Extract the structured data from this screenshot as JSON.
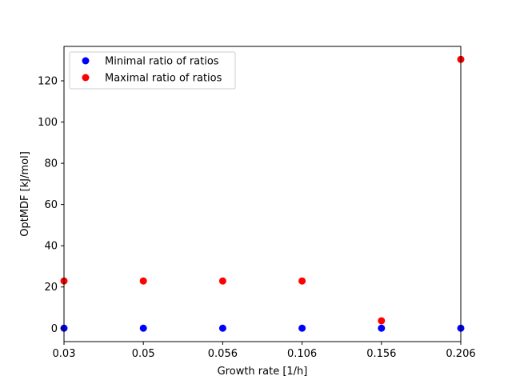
{
  "chart_data": {
    "type": "scatter",
    "title": "",
    "xlabel": "Growth rate [1/h]",
    "ylabel": "OptMDF [kJ/mol]",
    "x_categories": [
      "0.03",
      "0.05",
      "0.056",
      "0.106",
      "0.156",
      "0.206"
    ],
    "xlim": [
      0,
      5
    ],
    "ylim": [
      -6.5,
      136.7
    ],
    "yticks": [
      0,
      20,
      40,
      60,
      80,
      100,
      120
    ],
    "grid": false,
    "legend_position": "upper-left",
    "series": [
      {
        "name": "Minimal ratio of ratios",
        "color": "#0000ff",
        "values": [
          0,
          0,
          0,
          0,
          0,
          0
        ]
      },
      {
        "name": "Maximal ratio of ratios",
        "color": "#ff0000",
        "values": [
          22.9,
          22.9,
          22.9,
          22.9,
          3.6,
          130.4
        ]
      }
    ]
  }
}
